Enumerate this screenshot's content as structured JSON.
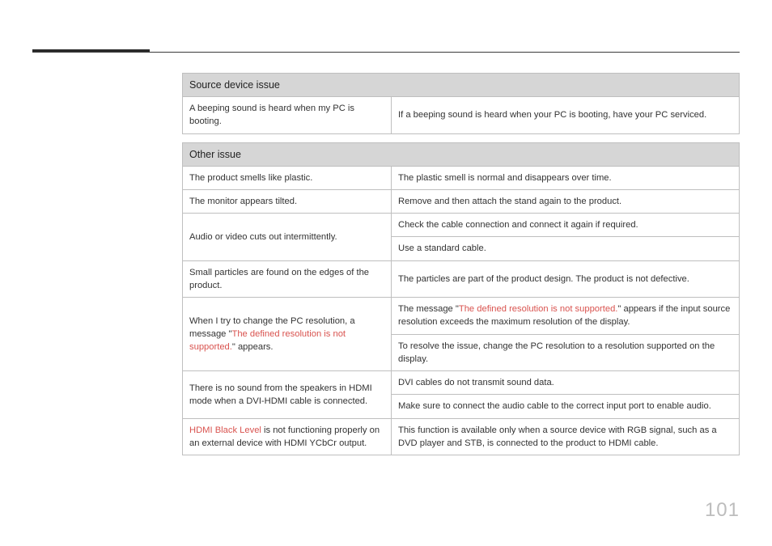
{
  "page_number": "101",
  "colors": {
    "header_bg": "#d6d6d6",
    "border": "#bfbfbf",
    "text": "#333333",
    "highlight": "#d9534f",
    "pagenum": "#bdbdbd",
    "accent": "#2a2a2a"
  },
  "tables": [
    {
      "header": "Source device issue",
      "rows": [
        {
          "issue": [
            {
              "t": "A beeping sound is heard when my PC is booting."
            }
          ],
          "solutions": [
            [
              {
                "t": "If a beeping sound is heard when your PC is booting, have your PC serviced."
              }
            ]
          ]
        }
      ]
    },
    {
      "header": "Other issue",
      "rows": [
        {
          "issue": [
            {
              "t": "The product smells like plastic."
            }
          ],
          "solutions": [
            [
              {
                "t": "The plastic smell is normal and disappears over time."
              }
            ]
          ]
        },
        {
          "issue": [
            {
              "t": "The monitor appears tilted."
            }
          ],
          "solutions": [
            [
              {
                "t": "Remove and then attach the stand again to the product."
              }
            ]
          ]
        },
        {
          "issue": [
            {
              "t": "Audio or video cuts out intermittently."
            }
          ],
          "solutions": [
            [
              {
                "t": "Check the cable connection and connect it again if required."
              }
            ],
            [
              {
                "t": "Use a standard cable."
              }
            ]
          ]
        },
        {
          "issue": [
            {
              "t": "Small particles are found on the edges of the product."
            }
          ],
          "solutions": [
            [
              {
                "t": "The particles are part of the product design. The product is not defective."
              }
            ]
          ]
        },
        {
          "issue": [
            {
              "t": "When I try to change the PC resolution, a message \""
            },
            {
              "t": "The defined resolution is not supported.",
              "c": "red"
            },
            {
              "t": "\" appears."
            }
          ],
          "solutions": [
            [
              {
                "t": "The message \""
              },
              {
                "t": "The defined resolution is not supported.",
                "c": "red"
              },
              {
                "t": "\" appears if the input source resolution exceeds the maximum resolution of the display."
              }
            ],
            [
              {
                "t": "To resolve the issue, change the PC resolution to a resolution supported on the display."
              }
            ]
          ]
        },
        {
          "issue": [
            {
              "t": "There is no sound from the speakers in HDMI mode when a DVI-HDMI cable is connected."
            }
          ],
          "solutions": [
            [
              {
                "t": "DVI cables do not transmit sound data."
              }
            ],
            [
              {
                "t": "Make sure to connect the audio cable to the correct input port to enable audio."
              }
            ]
          ]
        },
        {
          "issue": [
            {
              "t": "HDMI Black Level",
              "c": "red"
            },
            {
              "t": " is not functioning properly on an external device with HDMI YCbCr output."
            }
          ],
          "solutions": [
            [
              {
                "t": "This function is available only when a source device with RGB signal, such as a DVD player and STB, is connected to the product to HDMI cable."
              }
            ]
          ]
        }
      ]
    }
  ]
}
